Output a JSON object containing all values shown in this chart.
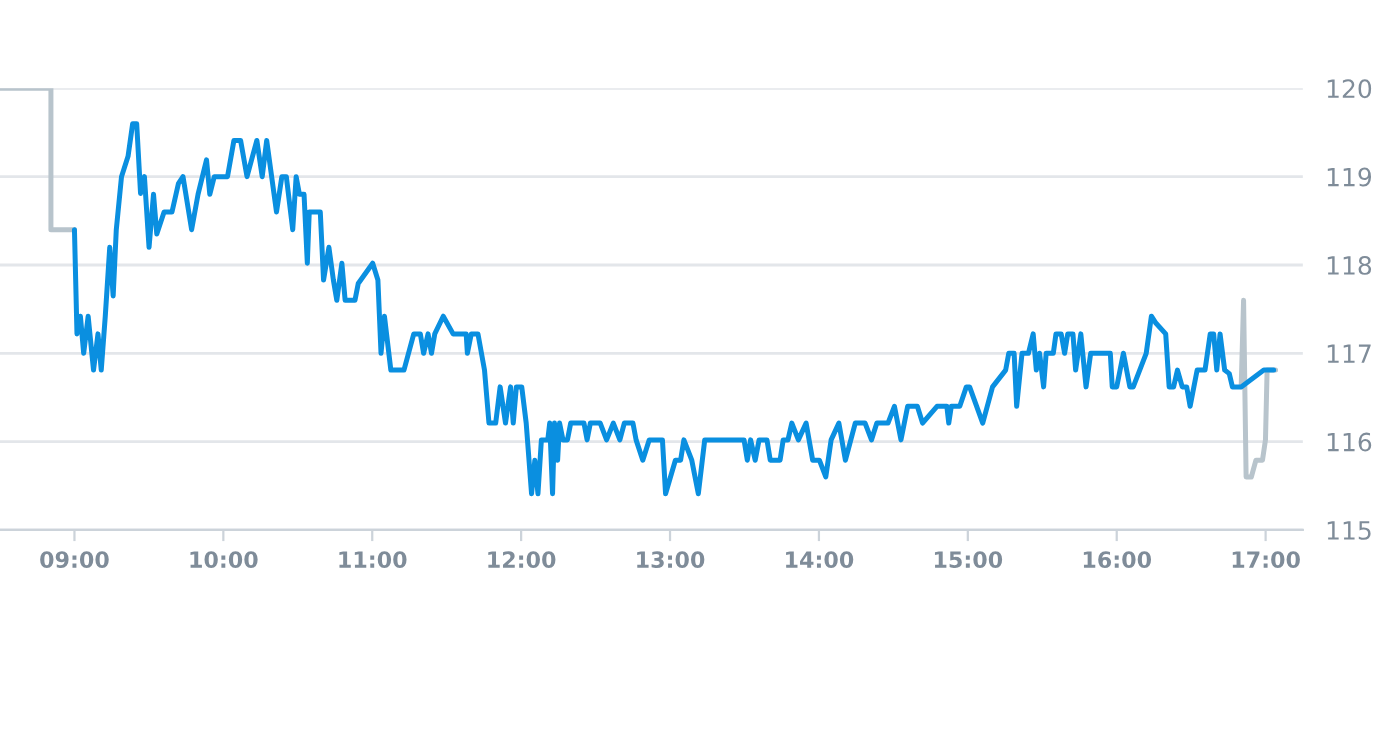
{
  "chart_data": {
    "type": "line",
    "xlim": [
      8.5,
      17.25
    ],
    "ylim": [
      115,
      120
    ],
    "xticks": [
      {
        "value": 9,
        "label": "09:00"
      },
      {
        "value": 10,
        "label": "10:00"
      },
      {
        "value": 11,
        "label": "11:00"
      },
      {
        "value": 12,
        "label": "12:00"
      },
      {
        "value": 13,
        "label": "13:00"
      },
      {
        "value": 14,
        "label": "14:00"
      },
      {
        "value": 15,
        "label": "15:00"
      },
      {
        "value": 16,
        "label": "16:00"
      },
      {
        "value": 17,
        "label": "17:00"
      }
    ],
    "yticks": [
      115,
      116,
      117,
      118,
      119,
      120
    ],
    "grid": "y",
    "marker": "none",
    "line_style": "solid",
    "series": [
      {
        "color": "#b8c4cc",
        "x": [
          8.5,
          8.842,
          8.842,
          9.0,
          9.01,
          16.836,
          16.852,
          16.869,
          16.904,
          16.935,
          16.979,
          16.999,
          17.01,
          17.067
        ],
        "values": [
          120,
          120,
          118.4,
          118.4,
          null,
          116.62,
          117.6,
          115.6,
          115.6,
          115.79,
          115.79,
          116.02,
          116.81,
          116.81
        ]
      },
      {
        "color": "#0a8fe0",
        "x": [
          9.0,
          9.017,
          9.04,
          9.062,
          9.092,
          9.128,
          9.158,
          9.18,
          9.207,
          9.237,
          9.26,
          9.281,
          9.316,
          9.36,
          9.391,
          9.418,
          9.444,
          9.47,
          9.501,
          9.531,
          9.553,
          9.602,
          9.655,
          9.698,
          9.729,
          9.787,
          9.83,
          9.887,
          9.909,
          9.939,
          10.028,
          10.071,
          10.116,
          10.159,
          10.225,
          10.261,
          10.291,
          10.357,
          10.393,
          10.423,
          10.466,
          10.489,
          10.511,
          10.542,
          10.564,
          10.577,
          10.651,
          10.673,
          10.709,
          10.739,
          10.762,
          10.796,
          10.818,
          10.884,
          10.906,
          11.003,
          11.038,
          11.059,
          11.082,
          11.125,
          11.213,
          11.279,
          11.323,
          11.345,
          11.375,
          11.398,
          11.42,
          11.477,
          11.543,
          11.631,
          11.639,
          11.665,
          11.71,
          11.754,
          11.784,
          11.829,
          11.859,
          11.895,
          11.929,
          11.947,
          11.968,
          12.004,
          12.034,
          12.07,
          12.092,
          12.113,
          12.136,
          12.179,
          12.192,
          12.211,
          12.224,
          12.245,
          12.258,
          12.281,
          12.311,
          12.333,
          12.422,
          12.443,
          12.465,
          12.531,
          12.574,
          12.619,
          12.663,
          12.693,
          12.751,
          12.772,
          12.817,
          12.86,
          12.949,
          12.97,
          13.036,
          13.071,
          13.093,
          13.146,
          13.19,
          13.233,
          13.497,
          13.519,
          13.541,
          13.572,
          13.598,
          13.651,
          13.673,
          13.739,
          13.76,
          13.792,
          13.818,
          13.862,
          13.914,
          13.958,
          14.003,
          14.046,
          14.082,
          14.134,
          14.178,
          14.244,
          14.31,
          14.353,
          14.389,
          14.464,
          14.507,
          14.551,
          14.596,
          14.661,
          14.696,
          14.793,
          14.859,
          14.872,
          14.889,
          14.946,
          14.99,
          15.012,
          15.1,
          15.166,
          15.254,
          15.275,
          15.311,
          15.328,
          15.364,
          15.407,
          15.439,
          15.46,
          15.482,
          15.509,
          15.526,
          15.574,
          15.592,
          15.627,
          15.65,
          15.671,
          15.706,
          15.724,
          15.759,
          15.794,
          15.825,
          15.957,
          15.97,
          16.0,
          16.045,
          16.088,
          16.111,
          16.198,
          16.233,
          16.264,
          16.329,
          16.352,
          16.382,
          16.408,
          16.44,
          16.47,
          16.493,
          16.54,
          16.593,
          16.628,
          16.651,
          16.672,
          16.694,
          16.725,
          16.756,
          16.777,
          16.836,
          16.988,
          17.054
        ],
        "values": [
          118.4,
          117.22,
          117.42,
          117.0,
          117.42,
          116.81,
          117.22,
          116.81,
          117.42,
          118.2,
          117.65,
          118.4,
          119.0,
          119.23,
          119.6,
          119.6,
          118.81,
          119.0,
          118.2,
          118.8,
          118.35,
          118.6,
          118.6,
          118.92,
          119.0,
          118.4,
          118.8,
          119.19,
          118.8,
          119.0,
          119.0,
          119.41,
          119.41,
          119.0,
          119.41,
          119.0,
          119.41,
          118.6,
          119.0,
          119.0,
          118.4,
          119.0,
          118.8,
          118.8,
          118.02,
          118.6,
          118.6,
          117.83,
          118.2,
          117.83,
          117.6,
          118.02,
          117.6,
          117.6,
          117.79,
          118.02,
          117.83,
          117.0,
          117.42,
          116.81,
          116.81,
          117.22,
          117.22,
          117.0,
          117.22,
          117.0,
          117.22,
          117.42,
          117.22,
          117.22,
          117.0,
          117.22,
          117.22,
          116.81,
          116.21,
          116.21,
          116.62,
          116.21,
          116.62,
          116.21,
          116.62,
          116.62,
          116.21,
          115.41,
          115.79,
          115.41,
          116.02,
          116.02,
          116.21,
          115.41,
          116.21,
          115.79,
          116.21,
          116.02,
          116.02,
          116.21,
          116.21,
          116.02,
          116.21,
          116.21,
          116.02,
          116.21,
          116.02,
          116.21,
          116.21,
          116.02,
          115.79,
          116.02,
          116.02,
          115.41,
          115.79,
          115.79,
          116.02,
          115.79,
          115.41,
          116.02,
          116.02,
          115.79,
          116.02,
          115.79,
          116.02,
          116.02,
          115.79,
          115.79,
          116.02,
          116.02,
          116.21,
          116.02,
          116.21,
          115.79,
          115.79,
          115.6,
          116.02,
          116.21,
          115.79,
          116.21,
          116.21,
          116.02,
          116.21,
          116.21,
          116.4,
          116.02,
          116.4,
          116.4,
          116.21,
          116.4,
          116.4,
          116.21,
          116.4,
          116.4,
          116.62,
          116.62,
          116.21,
          116.62,
          116.81,
          117.0,
          117.0,
          116.4,
          117.0,
          117.0,
          117.22,
          116.81,
          117.0,
          116.62,
          117.0,
          117.0,
          117.22,
          117.22,
          117.0,
          117.22,
          117.22,
          116.81,
          117.22,
          116.62,
          117.0,
          117.0,
          116.62,
          116.62,
          117.0,
          116.62,
          116.62,
          117.0,
          117.42,
          117.34,
          117.22,
          116.62,
          116.62,
          116.81,
          116.62,
          116.62,
          116.4,
          116.81,
          116.81,
          117.22,
          117.22,
          116.81,
          117.22,
          116.81,
          116.77,
          116.62,
          116.62,
          116.81,
          116.81
        ]
      }
    ]
  }
}
